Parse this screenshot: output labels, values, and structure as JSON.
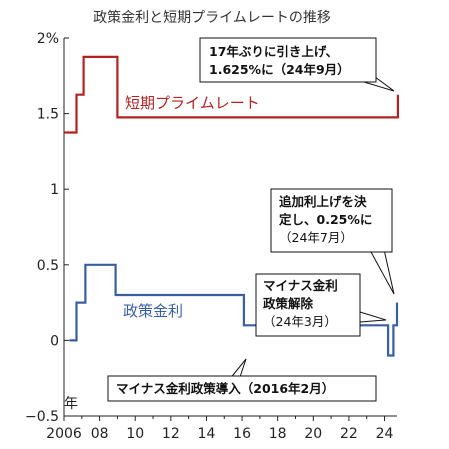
{
  "chart_data": {
    "type": "line",
    "title": "政策金利と短期プライムレートの推移",
    "xlabel": "年",
    "ylabel": "",
    "xlim": [
      2006,
      2024.7
    ],
    "ylim": [
      -0.5,
      2
    ],
    "yticks": [
      {
        "value": 2,
        "label": "2%"
      },
      {
        "value": 1.5,
        "label": "1.5"
      },
      {
        "value": 1,
        "label": "1"
      },
      {
        "value": 0.5,
        "label": "0.5"
      },
      {
        "value": 0,
        "label": "0"
      },
      {
        "value": -0.5,
        "label": "−0.5"
      }
    ],
    "xticks": [
      {
        "value": 2006,
        "label": "2006"
      },
      {
        "value": 2008,
        "label": "08"
      },
      {
        "value": 2010,
        "label": "10"
      },
      {
        "value": 2012,
        "label": "12"
      },
      {
        "value": 2014,
        "label": "14"
      },
      {
        "value": 2016,
        "label": "16"
      },
      {
        "value": 2018,
        "label": "18"
      },
      {
        "value": 2020,
        "label": "20"
      },
      {
        "value": 2022,
        "label": "22"
      },
      {
        "value": 2024,
        "label": "24"
      }
    ],
    "grid": false,
    "series": [
      {
        "name": "短期プライムレート",
        "color": "#b22222",
        "step": true,
        "x": [
          2006.0,
          2006.6,
          2006.7,
          2007.0,
          2007.1,
          2008.9,
          2009.0,
          2024.7,
          2024.75
        ],
        "y": [
          1.375,
          1.375,
          1.625,
          1.625,
          1.875,
          1.875,
          1.475,
          1.475,
          1.625
        ]
      },
      {
        "name": "政策金利",
        "color": "#3a5fa0",
        "step": true,
        "x": [
          2006.3,
          2006.6,
          2006.7,
          2007.1,
          2007.2,
          2008.8,
          2008.9,
          2016.1,
          2024.2,
          2024.5,
          2024.7
        ],
        "y": [
          0.0,
          0.0,
          0.25,
          0.25,
          0.5,
          0.5,
          0.3,
          0.1,
          -0.1,
          0.1,
          0.25
        ]
      }
    ],
    "annotations": [
      {
        "lines": [
          {
            "text": "17年ぶりに引き上げ、",
            "bold": true
          },
          {
            "text": "1.625%に",
            "bold": true,
            "suffix": "（24年9月）"
          }
        ]
      },
      {
        "lines": [
          {
            "text": "追加利上げを決",
            "bold": true
          },
          {
            "text": "定し、0.25%に",
            "bold": true
          },
          {
            "text": "（24年7月）",
            "bold": false
          }
        ]
      },
      {
        "lines": [
          {
            "text": "マイナス金利",
            "bold": true
          },
          {
            "text": "政策解除",
            "bold": true
          },
          {
            "text": "（24年3月）",
            "bold": false
          }
        ]
      },
      {
        "lines": [
          {
            "text": "マイナス金利政策導入",
            "bold": true,
            "suffix": "（2016年2月）"
          }
        ]
      }
    ]
  }
}
